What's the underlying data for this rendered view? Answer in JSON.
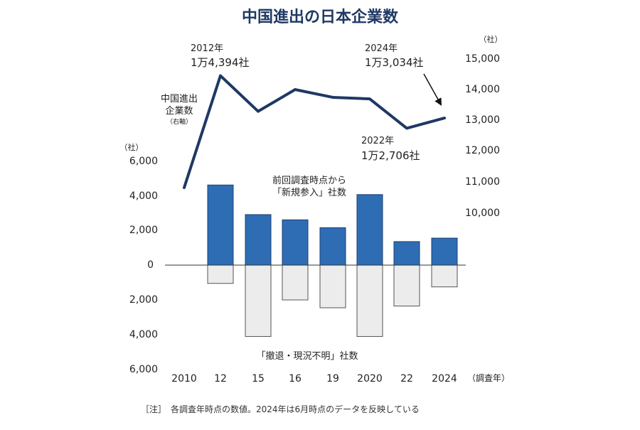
{
  "chart_data": {
    "type": "bar+line",
    "title": "中国進出の日本企業数",
    "categories": [
      "2010",
      "12",
      "15",
      "16",
      "19",
      "2020",
      "22",
      "2024"
    ],
    "x_axis_unit": "（調査年）",
    "left_axis": {
      "unit": "（社）",
      "ticks": [
        "6,000",
        "4,000",
        "2,000",
        "0",
        "2,000",
        "4,000",
        "6,000"
      ],
      "range": [
        -6000,
        6000
      ]
    },
    "right_axis": {
      "unit": "（社）",
      "ticks": [
        "15,000",
        "14,000",
        "13,000",
        "12,000",
        "11,000",
        "10,000"
      ],
      "range": [
        10000,
        15000
      ]
    },
    "series": [
      {
        "name_lines": [
          "前回調査時点から",
          "「新規参入」社数"
        ],
        "axis": "left",
        "color": "#2e6db4",
        "values": [
          null,
          4600,
          2900,
          2600,
          2150,
          4050,
          1350,
          1550
        ]
      },
      {
        "name_lines": [
          "「撤退・現況不明」社数"
        ],
        "axis": "left",
        "color": "#ececec",
        "values": [
          null,
          -1050,
          -4100,
          -2000,
          -2450,
          -4100,
          -2350,
          -1250
        ]
      },
      {
        "name_lines": [
          "中国進出",
          "企業数"
        ],
        "axis_note": "（右軸）",
        "axis": "right",
        "color": "#1f3864",
        "values": [
          10800,
          14394,
          13250,
          13950,
          13700,
          13650,
          12706,
          13034
        ]
      }
    ],
    "annotations": [
      {
        "year": "2012年",
        "value": "1万4,394社"
      },
      {
        "year": "2024年",
        "value": "1万3,034社"
      },
      {
        "year": "2022年",
        "value": "1万2,706社"
      }
    ],
    "note": "［注］　各調査年時点の数値。2024年は6月時点のデータを反映している"
  }
}
